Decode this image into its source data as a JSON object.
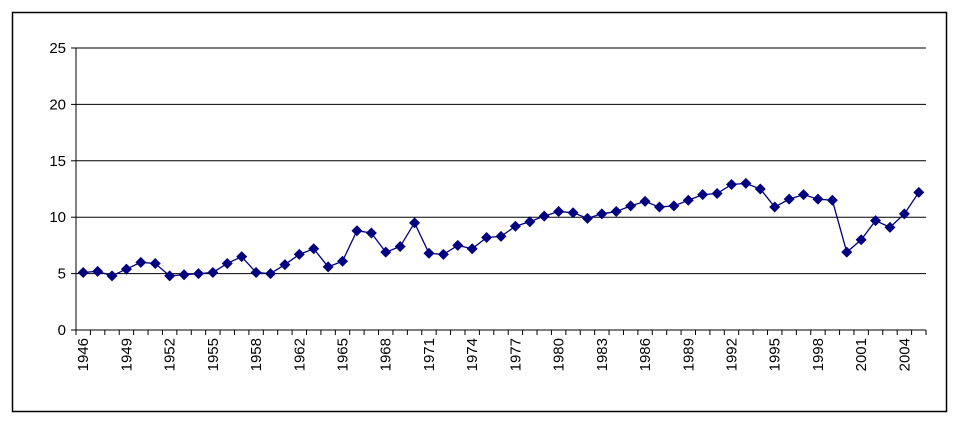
{
  "chart_data": {
    "type": "line",
    "categories": [
      "1946",
      null,
      null,
      "1949",
      null,
      null,
      "1952",
      null,
      null,
      "1955",
      null,
      null,
      "1958",
      null,
      null,
      "1962",
      null,
      null,
      "1965",
      null,
      null,
      "1968",
      null,
      null,
      "1971",
      null,
      null,
      "1974",
      null,
      null,
      "1977",
      null,
      null,
      "1980",
      null,
      null,
      "1983",
      null,
      null,
      "1986",
      null,
      null,
      "1989",
      null,
      null,
      "1992",
      null,
      null,
      "1995",
      null,
      null,
      "1998",
      null,
      null,
      "2001",
      null,
      null,
      "2004",
      null
    ],
    "series": [
      {
        "color": "#000080",
        "values": [
          5.1,
          5.2,
          4.8,
          5.4,
          6.0,
          5.9,
          4.8,
          4.9,
          5.0,
          5.1,
          5.9,
          6.5,
          5.1,
          5.0,
          5.8,
          6.7,
          7.2,
          5.6,
          6.1,
          8.8,
          8.6,
          6.9,
          7.4,
          9.5,
          6.8,
          6.7,
          7.5,
          7.2,
          8.2,
          8.3,
          9.2,
          9.6,
          10.1,
          10.5,
          10.4,
          9.9,
          10.3,
          10.5,
          11.0,
          11.4,
          10.9,
          11.0,
          11.5,
          12.0,
          12.1,
          12.9,
          13.0,
          12.5,
          10.9,
          11.6,
          12.0,
          11.6,
          11.5,
          6.9,
          8.0,
          9.7,
          9.1,
          10.3,
          12.2
        ]
      }
    ],
    "ylim": [
      0,
      25
    ],
    "yticks": [
      0,
      5,
      10,
      15,
      20,
      25
    ],
    "grid": true
  }
}
